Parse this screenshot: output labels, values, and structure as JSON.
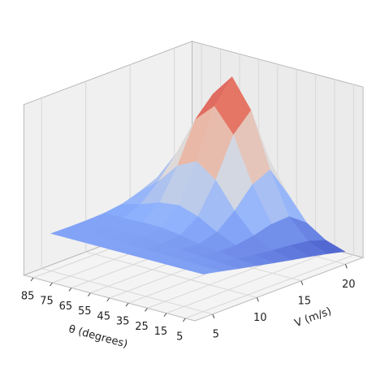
{
  "chart_data": {
    "type": "surface",
    "colormap": "coolwarm",
    "xlabel": "θ (degrees)",
    "ylabel": "V (m/s)",
    "x": [
      5,
      15,
      25,
      35,
      45,
      55,
      65,
      75,
      85
    ],
    "y": [
      5,
      7,
      9,
      11,
      13,
      15,
      17,
      19,
      21
    ],
    "z": [
      [
        1.1,
        0.99,
        0.87,
        0.76,
        0.65,
        0.54,
        0.44,
        0.33,
        0.2
      ],
      [
        1.1,
        1.0,
        0.9,
        0.81,
        0.73,
        0.67,
        0.62,
        0.55,
        0.38
      ],
      [
        1.1,
        1.01,
        0.93,
        0.87,
        0.86,
        0.95,
        1.09,
        1.12,
        0.74
      ],
      [
        1.1,
        1.03,
        0.97,
        0.95,
        1.1,
        1.53,
        2.1,
        2.34,
        1.44
      ],
      [
        1.1,
        1.04,
        1.0,
        1.06,
        1.41,
        2.28,
        3.41,
        3.93,
        2.33
      ],
      [
        1.1,
        1.06,
        1.04,
        1.13,
        1.59,
        2.68,
        4.1,
        4.77,
        2.84
      ],
      [
        1.1,
        1.07,
        1.06,
        1.14,
        1.52,
        2.41,
        3.57,
        4.12,
        2.55
      ],
      [
        1.1,
        1.08,
        1.07,
        1.11,
        1.32,
        1.8,
        2.42,
        2.71,
        1.86
      ],
      [
        1.1,
        1.09,
        1.09,
        1.11,
        1.18,
        1.35,
        1.57,
        1.68,
        1.38
      ]
    ],
    "xlim": [
      0,
      90
    ],
    "ylim": [
      3,
      22
    ],
    "zlim": [
      0,
      5
    ],
    "xticks": [
      85,
      75,
      65,
      55,
      45,
      35,
      25,
      15,
      5
    ],
    "yticks": [
      5,
      10,
      15,
      20
    ],
    "grid": true
  }
}
